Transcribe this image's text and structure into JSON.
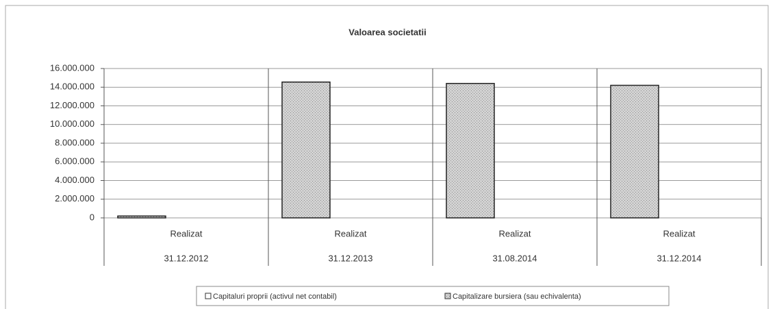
{
  "chart_data": {
    "type": "bar",
    "title": "Valoarea societatii",
    "categories": [
      [
        "Realizat",
        "31.12.2012"
      ],
      [
        "Realizat",
        "31.12.2013"
      ],
      [
        "Realizat",
        "31.08.2014"
      ],
      [
        "Realizat",
        "31.12.2014"
      ]
    ],
    "series": [
      {
        "name": "Capitaluri proprii (activul net contabil)",
        "color": "#ffffff",
        "values": [
          0,
          0,
          0,
          0
        ]
      },
      {
        "name": "Capitalizare bursiera (sau echivalenta)",
        "color": "#c9c9c9",
        "values": [
          200000,
          14550000,
          14400000,
          14200000
        ]
      }
    ],
    "ylim": [
      0,
      16000000
    ],
    "yticks": [
      {
        "value": 0,
        "label": "0"
      },
      {
        "value": 2000000,
        "label": "2.000.000"
      },
      {
        "value": 4000000,
        "label": "4.000.000"
      },
      {
        "value": 6000000,
        "label": "6.000.000"
      },
      {
        "value": 8000000,
        "label": "8.000.000"
      },
      {
        "value": 10000000,
        "label": "10.000.000"
      },
      {
        "value": 12000000,
        "label": "12.000.000"
      },
      {
        "value": 14000000,
        "label": "14.000.000"
      },
      {
        "value": 16000000,
        "label": "16.000.000"
      }
    ],
    "grid": true,
    "legend": "bottom"
  }
}
